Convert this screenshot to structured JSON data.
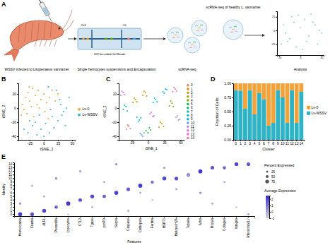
{
  "diagram": {
    "panel_labels": [
      "A",
      "B",
      "C",
      "D",
      "E"
    ],
    "shrimp_label": "WSSV infected to Litopenaeus vannamei",
    "chip_label": "Single hemocytes suspensions and Encapsulation",
    "cell": "Cell",
    "oil": "Oil",
    "beads": "10X barcoded Gel Beads",
    "seq_label": "scRNA-seq",
    "healthy_label": "scRNA-seq of healthy L. vannamei",
    "analysis_label": "Analysis"
  },
  "chart_data": [
    {
      "type": "scatter",
      "xlim": [
        -55,
        55
      ],
      "ylim": [
        -45,
        35
      ],
      "xticks": [
        -50,
        0,
        50
      ],
      "yticks": [
        -25,
        0,
        25
      ],
      "marker": "circle",
      "series": [
        {
          "color": "#7DBEDC",
          "x": [
            -40,
            -30,
            -20,
            -10,
            0,
            10,
            20,
            30,
            40,
            -35,
            -15,
            5,
            25,
            45,
            -25,
            15,
            35,
            -5,
            -45,
            50
          ],
          "values": [
            10,
            -20,
            25,
            -30,
            5,
            20,
            -10,
            15,
            -25,
            -5,
            15,
            -35,
            30,
            0,
            -15,
            -20,
            10,
            28,
            -25,
            -5
          ]
        }
      ]
    },
    {
      "type": "scatter",
      "x_label": "tSNE_1",
      "y_label": "tSNE_2",
      "xlim": [
        -45,
        55
      ],
      "ylim": [
        -45,
        35
      ],
      "xticks": [
        -25,
        0,
        25,
        50
      ],
      "yticks": [
        -40,
        -20,
        0,
        20
      ],
      "legend": "right",
      "marker": "circle",
      "series": [
        {
          "name": "Lv-0",
          "color": "#F2A33A",
          "x": [
            -38,
            -32,
            -28,
            -25,
            -20,
            -15,
            -10,
            -5,
            0,
            5,
            -35,
            -22,
            -12,
            2,
            10,
            15,
            -30,
            -18,
            -8,
            8,
            20,
            25,
            -40,
            -26
          ],
          "values": [
            5,
            15,
            22,
            10,
            28,
            18,
            25,
            12,
            20,
            8,
            -2,
            2,
            5,
            -5,
            15,
            25,
            -8,
            -12,
            0,
            -15,
            10,
            20,
            -10,
            30
          ]
        },
        {
          "name": "Lv-WSSV",
          "color": "#2FB3C6",
          "x": [
            -35,
            -28,
            -20,
            -12,
            -5,
            3,
            10,
            18,
            25,
            32,
            40,
            45,
            -15,
            0,
            15,
            30,
            38,
            22,
            8,
            -25,
            28,
            35,
            12,
            -8
          ],
          "values": [
            -30,
            -35,
            -25,
            -38,
            -30,
            -22,
            -35,
            -28,
            -18,
            -10,
            0,
            15,
            -20,
            -40,
            -12,
            5,
            -25,
            25,
            30,
            -18,
            12,
            -5,
            -2,
            -10
          ]
        }
      ]
    },
    {
      "type": "scatter",
      "x_label": "tSNE_1",
      "y_label": "tSNE_2",
      "xlim": [
        -45,
        55
      ],
      "ylim": [
        -45,
        35
      ],
      "xticks": [
        -25,
        0,
        25,
        50
      ],
      "yticks": [
        -40,
        -20,
        0,
        20
      ],
      "legend": "right",
      "marker": "circle",
      "series": [
        {
          "name": "0",
          "color": "#F8766D",
          "x": [
            -33,
            -30,
            -27,
            -31
          ],
          "values": [
            -30,
            -26,
            -29,
            -24
          ]
        },
        {
          "name": "1",
          "color": "#E58700",
          "x": [
            -8,
            -4,
            -2,
            -6
          ],
          "values": [
            18,
            22,
            17,
            24
          ]
        },
        {
          "name": "2",
          "color": "#C99800",
          "x": [
            17,
            21,
            24,
            19
          ],
          "values": [
            -27,
            -22,
            -26,
            -20
          ]
        },
        {
          "name": "3",
          "color": "#A3A500",
          "x": [
            -23,
            -19,
            -17,
            -21
          ],
          "values": [
            8,
            12,
            9,
            14
          ]
        },
        {
          "name": "4",
          "color": "#6BB100",
          "x": [
            33,
            37,
            35,
            39
          ],
          "values": [
            3,
            7,
            10,
            2
          ]
        },
        {
          "name": "5",
          "color": "#00BA38",
          "x": [
            -3,
            2,
            0,
            4
          ],
          "values": [
            -32,
            -28,
            -35,
            -31
          ]
        },
        {
          "name": "6",
          "color": "#00BF7D",
          "x": [
            -38,
            -34,
            -32,
            -36
          ],
          "values": [
            -2,
            2,
            -4,
            4
          ]
        },
        {
          "name": "7",
          "color": "#00C0AF",
          "x": [
            8,
            12,
            10,
            14
          ],
          "values": [
            8,
            12,
            14,
            9
          ]
        },
        {
          "name": "8",
          "color": "#00BCD8",
          "x": [
            -17,
            -13,
            -15,
            -11
          ],
          "values": [
            -13,
            -17,
            -19,
            -14
          ]
        },
        {
          "name": "9",
          "color": "#00B0F6",
          "x": [
            23,
            27,
            25,
            29
          ],
          "values": [
            23,
            27,
            21,
            26
          ]
        },
        {
          "name": "10",
          "color": "#619CFF",
          "x": [
            -12,
            -8,
            -10,
            -6
          ],
          "values": [
            -36,
            -40,
            -38,
            -35
          ]
        },
        {
          "name": "11",
          "color": "#B983FF",
          "x": [
            43,
            47,
            45,
            49
          ],
          "values": [
            -13,
            -17,
            -11,
            -16
          ]
        },
        {
          "name": "12",
          "color": "#E76BF3",
          "x": [
            -42,
            -38,
            -40,
            -36
          ],
          "values": [
            18,
            22,
            24,
            19
          ]
        },
        {
          "name": "13",
          "color": "#FD61D1",
          "x": [
            3,
            7,
            5,
            9
          ],
          "values": [
            -8,
            -12,
            -6,
            -11
          ]
        },
        {
          "name": "14",
          "color": "#FF67A4",
          "x": [
            38,
            42,
            40,
            44
          ],
          "values": [
            23,
            27,
            29,
            24
          ]
        }
      ]
    },
    {
      "type": "bar",
      "stacked": true,
      "legend": "right",
      "x_label": "Cluster",
      "y_label": "Fraction of Cells",
      "categories": [
        "0",
        "1",
        "2",
        "3",
        "4",
        "5",
        "6",
        "7",
        "8",
        "9",
        "10",
        "11",
        "12",
        "13",
        "14"
      ],
      "ylim": [
        0,
        1
      ],
      "yticks": [
        {
          "value": 0,
          "label": "0.00"
        },
        {
          "value": 0.25,
          "label": "0.25"
        },
        {
          "value": 0.5,
          "label": "0.50"
        },
        {
          "value": 0.75,
          "label": "0.75"
        },
        {
          "value": 1,
          "label": "1.00"
        }
      ],
      "series": [
        {
          "name": "Lv-0",
          "color": "#F2A33A",
          "values": [
            0.12,
            0.13,
            0.45,
            0.12,
            0.55,
            0.17,
            0.28,
            0.75,
            0.7,
            0.12,
            0.25,
            0.7,
            0.12,
            0.7,
            0.15
          ]
        },
        {
          "name": "Lv-WSSV",
          "color": "#2FB3C6",
          "values": [
            0.88,
            0.87,
            0.55,
            0.88,
            0.45,
            0.83,
            0.72,
            0.25,
            0.3,
            0.88,
            0.75,
            0.3,
            0.88,
            0.3,
            0.85
          ]
        }
      ]
    },
    {
      "type": "dot",
      "x_label": "Features",
      "y_label": "Identity",
      "categories": [
        "Hemocyanin",
        "Crustin",
        "ALF1",
        "Penaeidin",
        "Lysozyme",
        "CTL3",
        "Tgase",
        "proPO",
        "Serpin",
        "Caspase",
        "Cathepsin",
        "Ferritin",
        "HSP70",
        "Histone H2A",
        "Tubulin",
        "Actin",
        "Myosin",
        "Collagen",
        "Integrin",
        "Ribosomal L7"
      ],
      "identities": [
        0,
        1,
        2,
        3,
        4,
        5,
        6,
        7,
        8,
        9,
        10,
        11,
        12,
        13,
        14
      ],
      "dots": {
        "gene": [
          "Hemocyanin",
          "Crustin",
          "ALF1",
          "Penaeidin",
          "Lysozyme",
          "CTL3",
          "Tgase",
          "proPO",
          "Serpin",
          "Caspase",
          "Cathepsin",
          "Ferritin",
          "HSP70",
          "Histone H2A",
          "Tubulin",
          "Actin",
          "Myosin",
          "Collagen",
          "Integrin",
          "Ribosomal L7",
          "Hemocyanin",
          "Crustin",
          "ALF1",
          "Penaeidin",
          "Lysozyme",
          "CTL3",
          "Tgase",
          "proPO",
          "Serpin",
          "Caspase",
          "Cathepsin",
          "Ferritin",
          "HSP70",
          "Histone H2A",
          "Tubulin",
          "Actin",
          "Myosin",
          "Collagen",
          "Integrin",
          "Ribosomal L7"
        ],
        "identity": [
          0,
          0,
          1,
          2,
          3,
          4,
          5,
          5,
          6,
          7,
          8,
          9,
          10,
          10,
          11,
          12,
          13,
          13,
          14,
          14,
          3,
          8,
          5,
          10,
          0,
          12,
          2,
          9,
          14,
          1,
          6,
          4,
          13,
          7,
          11,
          6,
          3,
          9,
          2,
          0
        ],
        "pct": [
          90,
          75,
          85,
          60,
          95,
          70,
          80,
          65,
          88,
          72,
          90,
          55,
          85,
          78,
          66,
          92,
          70,
          60,
          85,
          74,
          30,
          25,
          20,
          35,
          15,
          28,
          22,
          18,
          30,
          25,
          20,
          15,
          26,
          22,
          18,
          30,
          24,
          20,
          16,
          22
        ],
        "avg": [
          2.2,
          1.8,
          2.0,
          1.5,
          2.3,
          1.7,
          1.9,
          1.4,
          2.1,
          1.6,
          2.2,
          1.2,
          2.0,
          1.8,
          1.5,
          2.3,
          1.7,
          1.3,
          2.0,
          1.6,
          0.2,
          -0.3,
          0.0,
          0.4,
          -0.5,
          0.1,
          -0.2,
          0.3,
          0.5,
          -0.1,
          0.0,
          -0.4,
          0.2,
          0.1,
          -0.3,
          0.4,
          -0.2,
          0.0,
          -0.5,
          0.3
        ]
      },
      "size_label": "Percent Expressed",
      "size_range": [
        0,
        100
      ],
      "size_ticks": [
        25,
        50,
        75
      ],
      "color_label": "Average Expression",
      "color_range": [
        -1,
        2.5
      ],
      "color_ticks": [
        -1,
        0,
        1,
        2
      ],
      "color_scale": [
        "#D3D3D3",
        "#3A2FD0"
      ]
    }
  ]
}
